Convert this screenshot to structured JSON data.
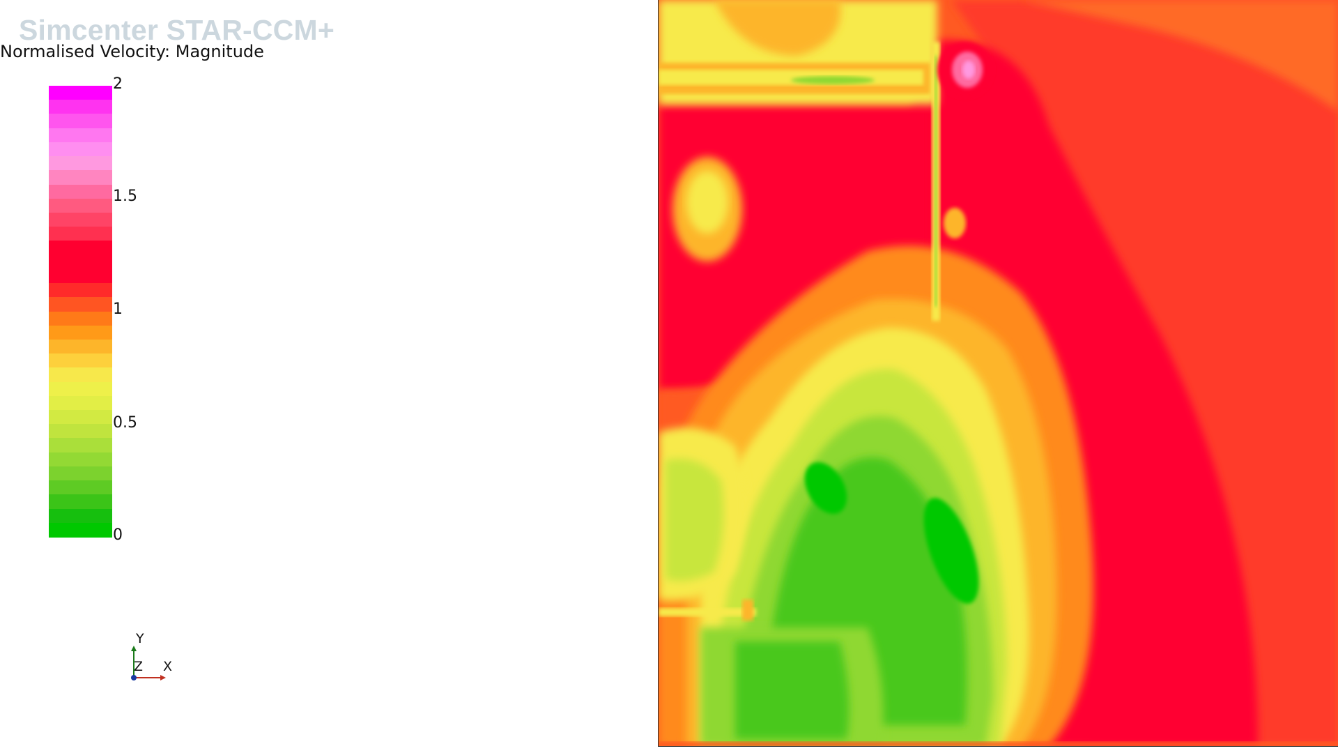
{
  "header": {
    "watermark": "Simcenter STAR-CCM+",
    "scalar_title": "Normalised Velocity: Magnitude"
  },
  "colorbar": {
    "min": 0,
    "max": 2,
    "tick_labels": [
      "2",
      "1.5",
      "1",
      "0.5",
      "0"
    ],
    "band_colors": [
      "#ff00ff",
      "#ff33f0",
      "#ff55ee",
      "#ff77f0",
      "#ff8ef0",
      "#ff99e0",
      "#ff85c0",
      "#ff6aa0",
      "#ff5a80",
      "#ff4466",
      "#ff3050",
      "#ff0030",
      "#ff0030",
      "#ff0030",
      "#ff2a2a",
      "#ff5522",
      "#ff7a18",
      "#ff9a18",
      "#fdb52a",
      "#fdd03c",
      "#f7e84b",
      "#eef04a",
      "#e2ee46",
      "#d2ea42",
      "#c0e43e",
      "#aadf3a",
      "#93d934",
      "#7cd22e",
      "#5ecb24",
      "#3bc418",
      "#16bf0e",
      "#00c800"
    ]
  },
  "triad": {
    "y_label": "Y",
    "z_label": "Z",
    "x_label": "X"
  },
  "palette": {
    "magenta": "#ff00ff",
    "pink": "#ff6ae0",
    "crimson": "#ff0030",
    "red": "#ff2a2a",
    "red_orange": "#ff5a22",
    "orange": "#ff8a1a",
    "amber": "#fdb52a",
    "yellow": "#f7ea4b",
    "lime": "#c8e63e",
    "light_green": "#8fd832",
    "green": "#48c81e",
    "bright_green": "#00c800",
    "background": "#ffffff"
  }
}
